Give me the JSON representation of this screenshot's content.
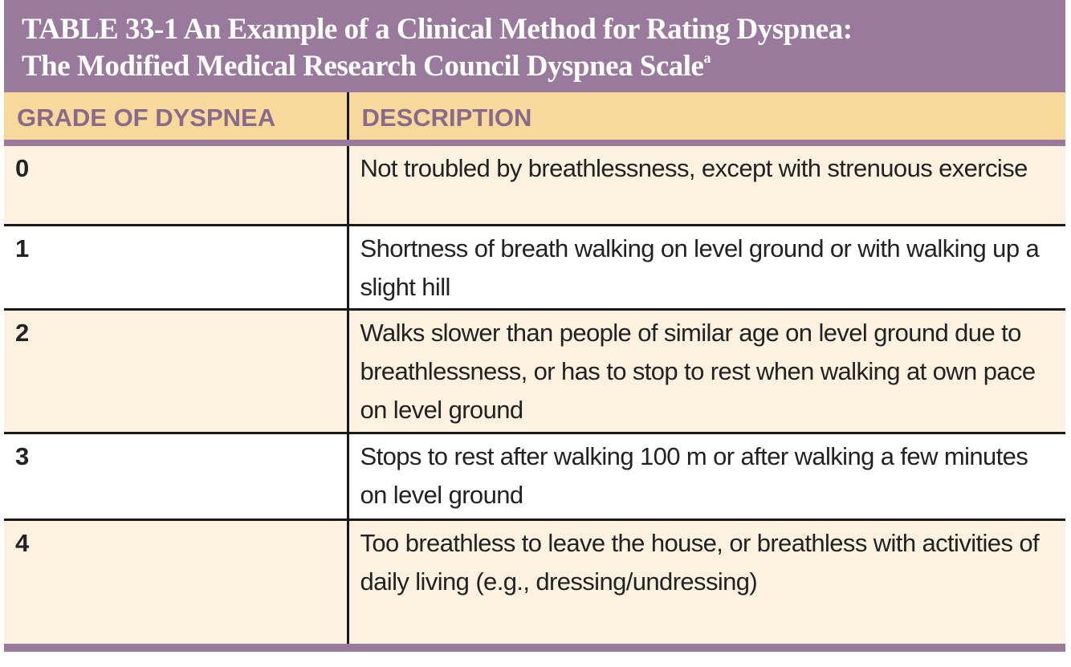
{
  "table": {
    "title": [
      "TABLE 33-1  An Example of a Clinical Method for Rating Dyspnea:",
      "The Modified Medical Research Council Dyspnea Scale"
    ],
    "title_note": "a",
    "columns": [
      "GRADE OF DYSPNEA",
      "DESCRIPTION"
    ],
    "rows": [
      [
        "0",
        "Not troubled by breathlessness, except with strenuous exercise"
      ],
      [
        "1",
        "Shortness of breath walking on level ground or with walking up a slight hill"
      ],
      [
        "2",
        "Walks slower than people of similar age on level ground due to breathlessness, or has to stop to rest when walking at own pace on level ground"
      ],
      [
        "3",
        "Stops to rest after walking 100 m or after walking a few minutes on level ground"
      ],
      [
        "4",
        "Too breathless to leave the house, or breathless with activities of daily living (e.g., dressing/undressing)"
      ]
    ]
  }
}
